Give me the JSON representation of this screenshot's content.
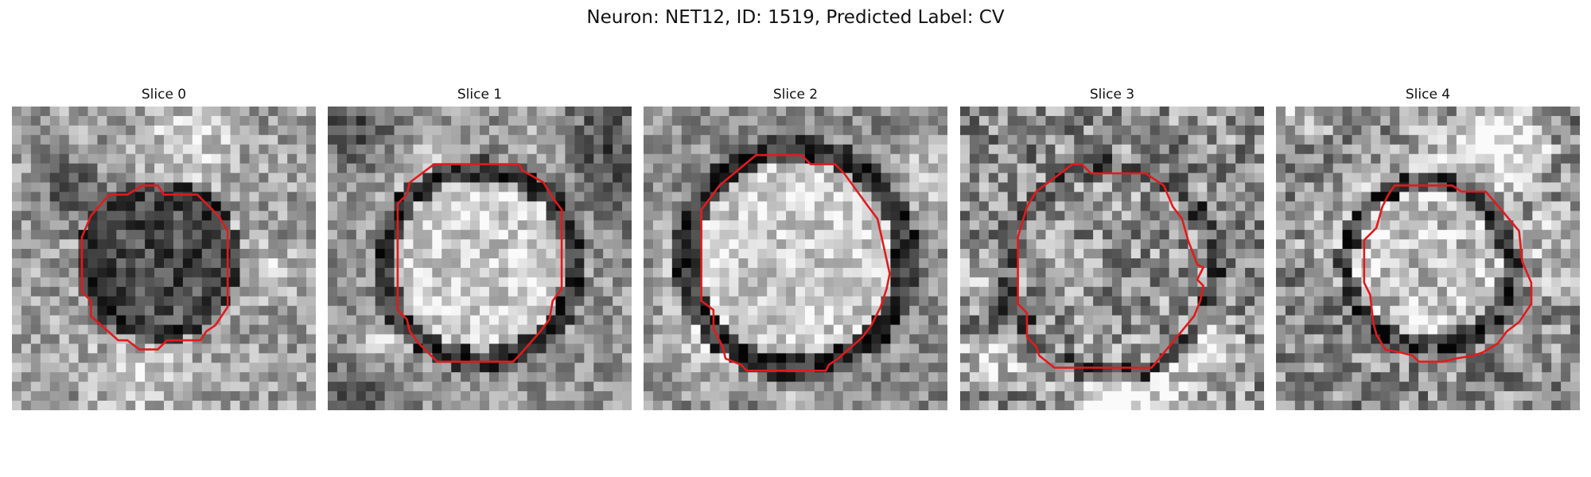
{
  "figure": {
    "title": "Neuron: NET12, ID: 1519, Predicted Label: CV"
  },
  "colors": {
    "contour": "#e31a1c"
  },
  "panels": [
    {
      "label": "Slice 0",
      "appearance": "dark-core"
    },
    {
      "label": "Slice 1",
      "appearance": "bright-core"
    },
    {
      "label": "Slice 2",
      "appearance": "bright-core"
    },
    {
      "label": "Slice 3",
      "appearance": "mid-core"
    },
    {
      "label": "Slice 4",
      "appearance": "bright-core"
    }
  ]
}
